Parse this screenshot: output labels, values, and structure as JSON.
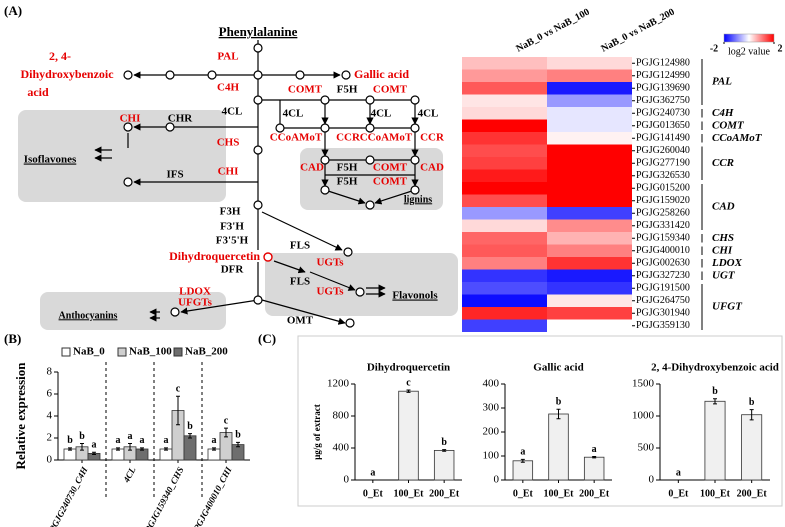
{
  "figure": {
    "panel_labels": [
      "(A)",
      "(B)",
      "(C)"
    ],
    "pathway": {
      "labels": [
        {
          "text": "Phenylalanine",
          "color": "#000000"
        },
        {
          "text": "PAL",
          "color": "#e60000"
        },
        {
          "text": "C4H",
          "color": "#e60000"
        },
        {
          "text": "2, 4-",
          "color": "#e60000"
        },
        {
          "text": "Dihydroxybenzoic",
          "color": "#e60000"
        },
        {
          "text": "acid",
          "color": "#e60000"
        },
        {
          "text": "Gallic acid",
          "color": "#e60000"
        },
        {
          "text": "4CL",
          "color": "#000000"
        },
        {
          "text": "COMT",
          "color": "#e60000"
        },
        {
          "text": "F5H",
          "color": "#000000"
        },
        {
          "text": "COMT",
          "color": "#e60000"
        },
        {
          "text": "4CL",
          "color": "#000000"
        },
        {
          "text": "4CL",
          "color": "#000000"
        },
        {
          "text": "4CL",
          "color": "#000000"
        },
        {
          "text": "CHI",
          "color": "#e60000"
        },
        {
          "text": "CHR",
          "color": "#000000"
        },
        {
          "text": "CHS",
          "color": "#e60000"
        },
        {
          "text": "CCoAMoT",
          "color": "#e60000"
        },
        {
          "text": "CCR",
          "color": "#e60000"
        },
        {
          "text": "CCoAMoT",
          "color": "#e60000"
        },
        {
          "text": "CCR",
          "color": "#e60000"
        },
        {
          "text": "Isoflavones",
          "color": "#000000"
        },
        {
          "text": "IFS",
          "color": "#000000"
        },
        {
          "text": "CHI",
          "color": "#e60000"
        },
        {
          "text": "CAD",
          "color": "#e60000"
        },
        {
          "text": "F5H",
          "color": "#000000"
        },
        {
          "text": "COMT",
          "color": "#e60000"
        },
        {
          "text": "CAD",
          "color": "#e60000"
        },
        {
          "text": "F5H",
          "color": "#000000"
        },
        {
          "text": "COMT",
          "color": "#e60000"
        },
        {
          "text": "lignins",
          "color": "#000000"
        },
        {
          "text": "F3H",
          "color": "#000000"
        },
        {
          "text": "F3'H",
          "color": "#000000"
        },
        {
          "text": "F3'5'H",
          "color": "#000000"
        },
        {
          "text": "Dihydroquercetin",
          "color": "#e60000"
        },
        {
          "text": "FLS",
          "color": "#000000"
        },
        {
          "text": "DFR",
          "color": "#000000"
        },
        {
          "text": "UGTs",
          "color": "#e60000"
        },
        {
          "text": "FLS",
          "color": "#000000"
        },
        {
          "text": "UGTs",
          "color": "#e60000"
        },
        {
          "text": "Flavonols",
          "color": "#000000"
        },
        {
          "text": "LDOX",
          "color": "#e60000"
        },
        {
          "text": "UFGTs",
          "color": "#e60000"
        },
        {
          "text": "Anthocyanins",
          "color": "#000000"
        },
        {
          "text": "OMT",
          "color": "#000000"
        }
      ]
    }
  },
  "chart_data": [
    {
      "type": "heatmap",
      "x": [
        "NaB_0 vs NaB_100",
        "NaB_0 vs NaB_200"
      ],
      "y": [
        "PGJG124980",
        "PGJG124990",
        "PGJG139690",
        "PGJG362750",
        "PGJG240730",
        "PGJG013650",
        "PGJG141490",
        "PGJG260040",
        "PGJG277190",
        "PGJG326530",
        "PGJG015200",
        "PGJG159020",
        "PGJG258260",
        "PGJG331420",
        "PGJG159340",
        "PGJG400010",
        "PGJG002630",
        "PGJG327230",
        "PGJG191500",
        "PGJG264750",
        "PGJG301940",
        "PGJG359130"
      ],
      "row_groups": [
        "PAL",
        "PAL",
        "PAL",
        "PAL",
        "C4H",
        "COMT",
        "CCoAMoT",
        "CCR",
        "CCR",
        "CCR",
        "CAD",
        "CAD",
        "CAD",
        "CAD",
        "CHS",
        "CHI",
        "LDOX",
        "UGT",
        "UFGT",
        "UFGT",
        "UFGT",
        "UFGT"
      ],
      "values": [
        [
          0.5,
          0.3
        ],
        [
          0.8,
          1.0
        ],
        [
          1.3,
          -1.8
        ],
        [
          0.2,
          -0.8
        ],
        [
          0.3,
          -0.2
        ],
        [
          2,
          -0.2
        ],
        [
          1.6,
          0.1
        ],
        [
          1.4,
          2
        ],
        [
          1.5,
          2
        ],
        [
          1.8,
          2
        ],
        [
          2,
          2
        ],
        [
          1.4,
          2
        ],
        [
          -0.8,
          -1.5
        ],
        [
          0.3,
          0.9
        ],
        [
          1.2,
          0.6
        ],
        [
          1.3,
          1.0
        ],
        [
          1.0,
          1.6
        ],
        [
          -1.6,
          -1.8
        ],
        [
          -1.4,
          -1.6
        ],
        [
          -1.9,
          0.2
        ],
        [
          1.7,
          1.5
        ],
        [
          -1.5,
          0.0
        ]
      ],
      "colorbar": {
        "range": [
          -2,
          2
        ],
        "ticks": [
          -2,
          2
        ],
        "label": "log2 value",
        "colors": [
          "#0000ff",
          "#ffffff",
          "#ff0000"
        ]
      }
    },
    {
      "type": "bar",
      "ylabel": "Relative expression",
      "categories": [
        "PGJG240730_C4H",
        "4CL",
        "PGJG159340_CHS",
        "PGJG400010_CHI"
      ],
      "series": [
        {
          "name": "NaB_0",
          "color": "#ffffff",
          "values": [
            1.0,
            1.0,
            1.0,
            1.0
          ],
          "errors": [
            0.1,
            0.1,
            0.1,
            0.1
          ],
          "letters": [
            "b",
            "a",
            "a",
            "a"
          ]
        },
        {
          "name": "NaB_100",
          "color": "#cfcfcf",
          "values": [
            1.2,
            1.2,
            4.5,
            2.5
          ],
          "errors": [
            0.3,
            0.3,
            1.3,
            0.4
          ],
          "letters": [
            "b",
            "a",
            "c",
            "c"
          ]
        },
        {
          "name": "NaB_200",
          "color": "#6e6e6e",
          "values": [
            0.6,
            1.0,
            2.2,
            1.4
          ],
          "errors": [
            0.1,
            0.1,
            0.2,
            0.2
          ],
          "letters": [
            "a",
            "a",
            "b",
            "b"
          ]
        }
      ],
      "ylim": [
        0,
        8
      ],
      "yticks": [
        0,
        2,
        4,
        6,
        8
      ]
    },
    {
      "type": "bar",
      "title": "Dihydroquercetin",
      "ylabel": "μg/g of extract",
      "categories": [
        "0_Et",
        "100_Et",
        "200_Et"
      ],
      "color": "#f0f0f0",
      "values": [
        0,
        1110,
        370
      ],
      "errors": [
        0,
        15,
        10
      ],
      "letters": [
        "a",
        "c",
        "b"
      ],
      "ylim": [
        0,
        1200
      ],
      "yticks": [
        0,
        400,
        800,
        1200
      ]
    },
    {
      "type": "bar",
      "title": "Gallic acid",
      "categories": [
        "0_Et",
        "100_Et",
        "200_Et"
      ],
      "color": "#f0f0f0",
      "values": [
        80,
        275,
        95
      ],
      "errors": [
        6,
        20,
        3
      ],
      "letters": [
        "a",
        "b",
        "a"
      ],
      "ylim": [
        0,
        400
      ],
      "yticks": [
        0,
        100,
        200,
        300,
        400
      ]
    },
    {
      "type": "bar",
      "title": "2, 4-Dihydroxybenzoic  acid",
      "categories": [
        "0_Et",
        "100_Et",
        "200_Et"
      ],
      "color": "#f0f0f0",
      "values": [
        0,
        1230,
        1020
      ],
      "errors": [
        0,
        40,
        80
      ],
      "letters": [
        "a",
        "b",
        "b"
      ],
      "ylim": [
        0,
        1500
      ],
      "yticks": [
        0,
        500,
        1000,
        1500
      ]
    }
  ]
}
